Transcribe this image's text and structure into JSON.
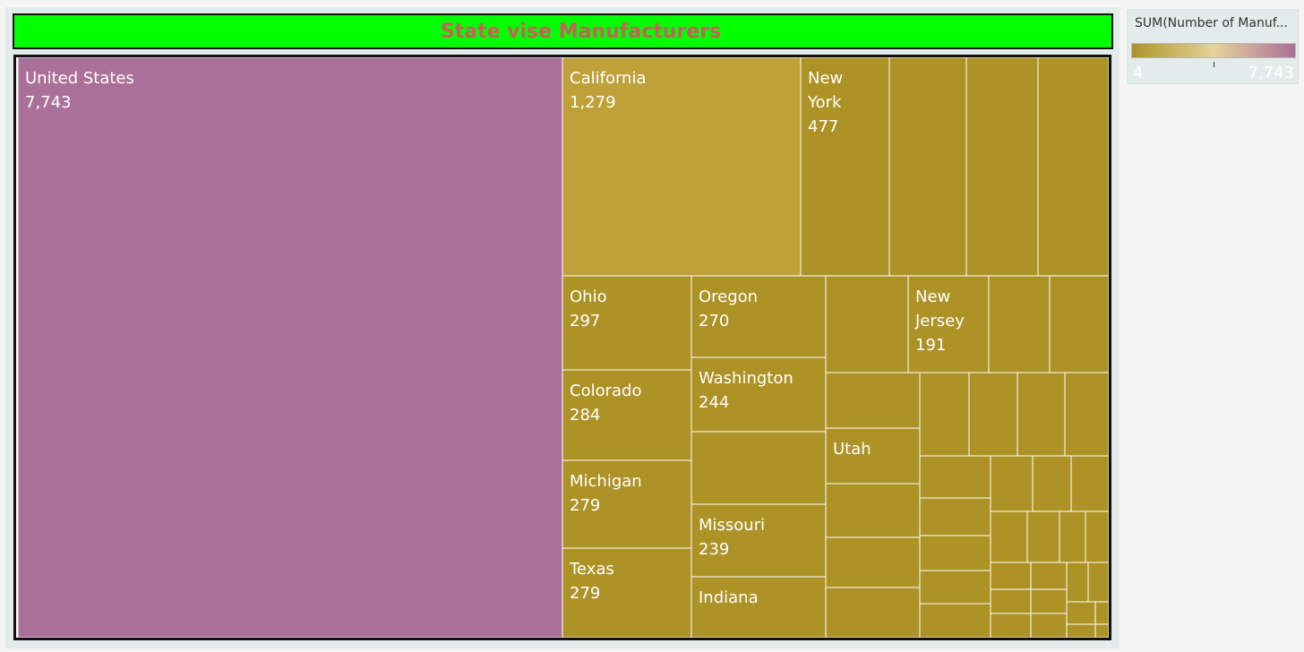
{
  "title": "State vise Manufacturers",
  "legend": {
    "title": "SUM(Number of Manuf...",
    "min_label": "4",
    "max_label": "7,743",
    "low_color": "#ad9326",
    "mid_color": "#e3d49a",
    "high_color": "#aa7099"
  },
  "colors": {
    "title_bg": "#00ff00",
    "title_text": "#c85f5a",
    "high": "#aa7099",
    "california": "#bfa13a",
    "low": "#ad9326"
  },
  "chart_data": {
    "type": "treemap",
    "title": "State vise Manufacturers",
    "measure": "SUM(Number of Manuf...",
    "color_range": [
      4,
      7743
    ],
    "labeled_items": [
      {
        "name": "United States",
        "value": 7743,
        "value_label": "7,743"
      },
      {
        "name": "California",
        "value": 1279,
        "value_label": "1,279"
      },
      {
        "name": "New York",
        "value": 477,
        "value_label": "477"
      },
      {
        "name": "Ohio",
        "value": 297,
        "value_label": "297"
      },
      {
        "name": "Colorado",
        "value": 284,
        "value_label": "284"
      },
      {
        "name": "Michigan",
        "value": 279,
        "value_label": "279"
      },
      {
        "name": "Texas",
        "value": 279,
        "value_label": "279"
      },
      {
        "name": "Oregon",
        "value": 270,
        "value_label": "270"
      },
      {
        "name": "Washington",
        "value": 244,
        "value_label": "244"
      },
      {
        "name": "Missouri",
        "value": 239,
        "value_label": "239"
      },
      {
        "name": "New Jersey",
        "value": 191,
        "value_label": "191"
      },
      {
        "name": "Utah",
        "value": null,
        "value_label": ""
      },
      {
        "name": "Indiana",
        "value": null,
        "value_label": ""
      }
    ],
    "unlabeled_cell_count": 52
  }
}
